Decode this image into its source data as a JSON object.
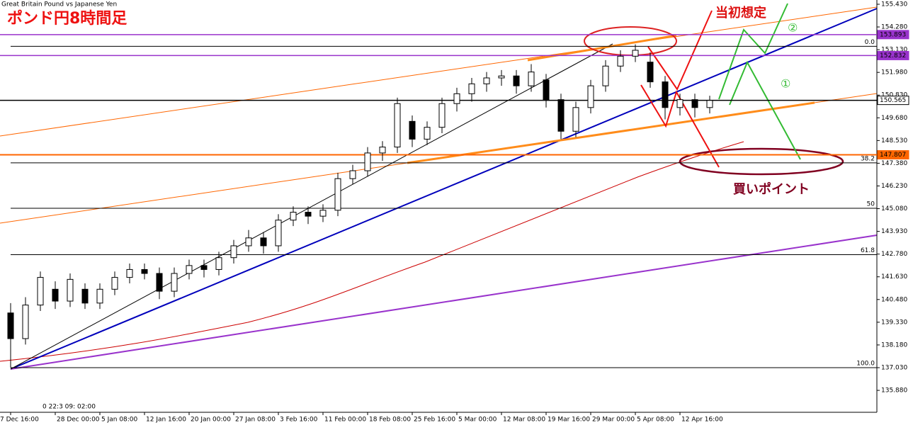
{
  "chart_data": {
    "type": "candlestick",
    "title": "Great Britain Pound vs Japanese Yen",
    "ylim": [
      134.77,
      155.645
    ],
    "yticks": [
      {
        "value": 155.43,
        "label": "155.430"
      },
      {
        "value": 154.28,
        "label": "154.280"
      },
      {
        "value": 153.13,
        "label": "153.130"
      },
      {
        "value": 151.98,
        "label": "151.980"
      },
      {
        "value": 150.83,
        "label": "150.830"
      },
      {
        "value": 149.68,
        "label": "149.680"
      },
      {
        "value": 148.53,
        "label": "148.530"
      },
      {
        "value": 147.38,
        "label": "147.380"
      },
      {
        "value": 146.23,
        "label": "146.230"
      },
      {
        "value": 145.08,
        "label": "145.080"
      },
      {
        "value": 143.93,
        "label": "143.930"
      },
      {
        "value": 142.78,
        "label": "142.780"
      },
      {
        "value": 141.63,
        "label": "141.630"
      },
      {
        "value": 140.48,
        "label": "140.480"
      },
      {
        "value": 139.33,
        "label": "139.330"
      },
      {
        "value": 138.18,
        "label": "138.180"
      },
      {
        "value": 137.03,
        "label": "137.030"
      },
      {
        "value": 135.88,
        "label": "135.880"
      }
    ],
    "x_labels": [
      "7 Dec 16:00",
      "28 Dec 00:00",
      "5 Jan 08:00",
      "12 Jan 16:00",
      "20 Jan 00:00",
      "27 Jan 08:00",
      "3 Feb 16:00",
      "11 Feb 00:00",
      "18 Feb 08:00",
      "25 Feb 16:00",
      "5 Mar 00:00",
      "12 Mar 08:00",
      "19 Mar 16:00",
      "29 Mar 00:00",
      "5 Apr 08:00",
      "12 Apr 16:00"
    ],
    "cursor_label": "0 22:3 09: 02:00",
    "open": [
      139.8,
      138.5,
      140.2,
      141.0,
      140.4,
      141.0,
      140.3,
      141.0,
      141.6,
      142.0,
      141.8,
      140.9,
      141.8,
      142.2,
      142.0,
      142.6,
      143.2,
      143.6,
      143.2,
      144.5,
      144.9,
      144.7,
      145.0,
      146.6,
      147.0,
      147.9,
      148.2,
      149.5,
      148.6,
      149.2,
      150.4,
      150.9,
      151.4,
      151.7,
      151.8,
      151.3,
      151.6,
      150.6,
      149.0,
      150.2,
      151.3,
      152.3,
      152.8,
      152.5,
      151.5,
      150.2,
      150.6,
      150.2
    ],
    "high": [
      140.3,
      140.6,
      141.9,
      141.4,
      141.8,
      141.3,
      141.3,
      141.9,
      142.3,
      142.3,
      142.1,
      142.1,
      142.5,
      142.5,
      142.9,
      143.5,
      144.0,
      143.9,
      144.8,
      145.2,
      145.2,
      145.3,
      146.9,
      147.3,
      148.2,
      148.5,
      150.7,
      149.8,
      149.5,
      150.7,
      151.2,
      151.7,
      152.0,
      152.1,
      152.1,
      152.4,
      151.9,
      150.9,
      150.5,
      151.6,
      152.6,
      153.1,
      153.4,
      153.0,
      151.8,
      150.9,
      150.9,
      150.8
    ],
    "low": [
      137.03,
      138.2,
      139.9,
      140.0,
      140.1,
      140.0,
      140.0,
      140.7,
      141.3,
      141.5,
      140.5,
      140.6,
      141.5,
      141.6,
      141.7,
      142.3,
      142.9,
      142.8,
      142.9,
      144.2,
      144.3,
      144.4,
      144.7,
      146.3,
      146.7,
      147.5,
      147.9,
      148.2,
      148.3,
      148.9,
      150.0,
      150.5,
      151.0,
      151.3,
      150.9,
      151.0,
      150.2,
      148.6,
      148.7,
      149.9,
      151.0,
      152.0,
      152.5,
      151.2,
      149.6,
      149.8,
      149.7,
      149.9
    ],
    "close": [
      138.5,
      140.2,
      141.6,
      140.4,
      141.5,
      140.3,
      141.0,
      141.6,
      142.0,
      141.8,
      140.9,
      141.8,
      142.2,
      142.0,
      142.6,
      143.2,
      143.6,
      143.2,
      144.5,
      144.9,
      144.7,
      145.0,
      146.6,
      147.0,
      147.9,
      148.2,
      150.4,
      148.6,
      149.2,
      150.4,
      150.9,
      151.4,
      151.7,
      151.8,
      151.3,
      152.0,
      150.6,
      149.0,
      150.2,
      151.3,
      152.3,
      152.8,
      153.1,
      151.5,
      150.2,
      150.6,
      150.2,
      150.56
    ],
    "levels": [
      {
        "value": 153.893,
        "label": "153.893",
        "color": "#9933cc"
      },
      {
        "value": 152.832,
        "label": "152.832",
        "color": "#9933cc"
      },
      {
        "value": 150.565,
        "label": "150.565",
        "color": "#000000"
      },
      {
        "value": 147.807,
        "label": "147.807",
        "color": "#ff6600"
      }
    ],
    "fibo": [
      {
        "value": 153.3,
        "label": "0.0"
      },
      {
        "value": 147.4,
        "label": "38.2"
      },
      {
        "value": 145.1,
        "label": "50"
      },
      {
        "value": 142.75,
        "label": "61.8"
      },
      {
        "value": 137.03,
        "label": "100.0"
      }
    ],
    "annotations": {
      "heading": "ポンド円8時間足",
      "initial": "当初想定",
      "buy": "買いポイント",
      "one": "①",
      "two": "②"
    }
  }
}
